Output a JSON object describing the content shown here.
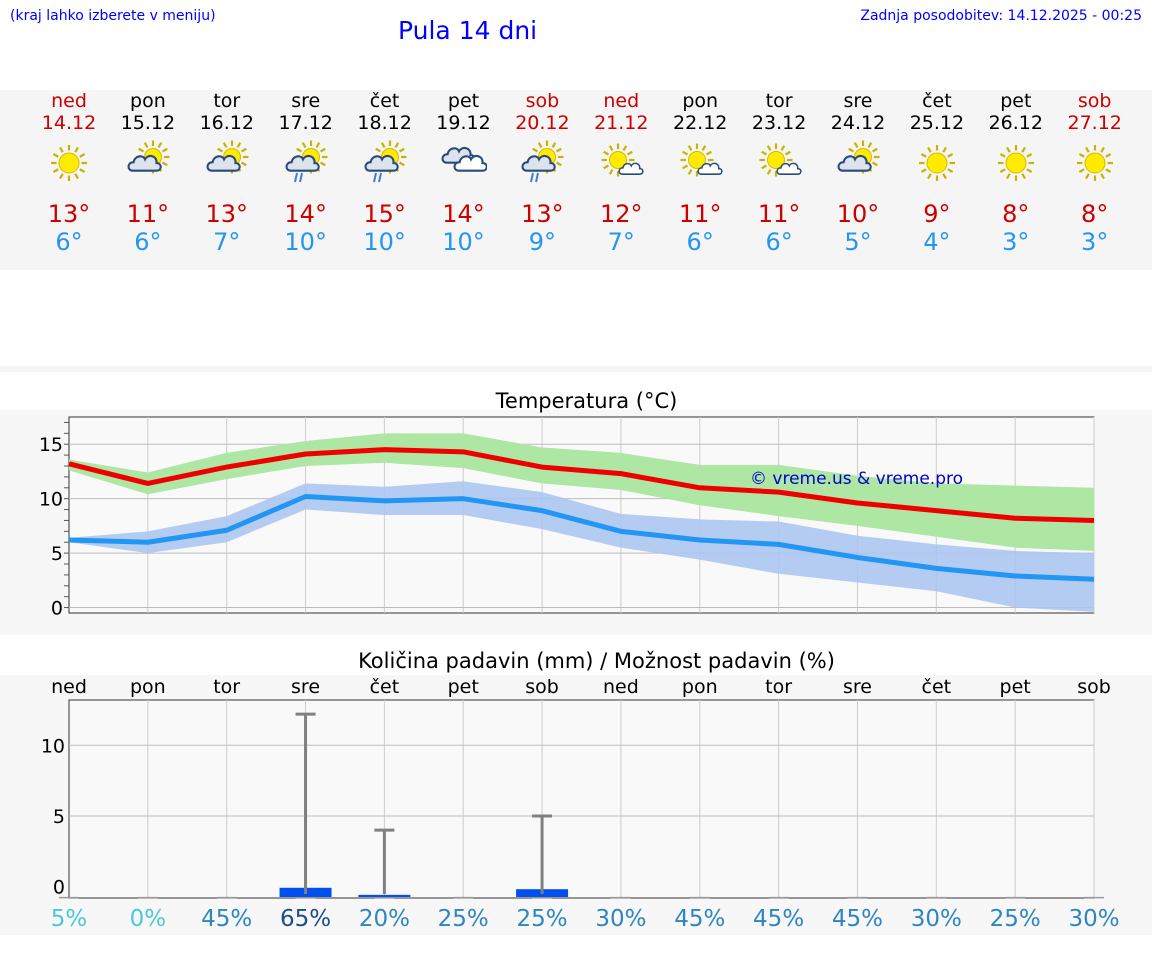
{
  "header": {
    "left_note": "(kraj lahko izberete v meniju)",
    "title": "Pula 14 dni",
    "updated": "Zadnja posodobitev: 14.12.2025 - 00:25"
  },
  "days": [
    {
      "name": "ned",
      "date": "14.12",
      "max": "13°",
      "min": "6°",
      "weekend": true,
      "icon": "sun"
    },
    {
      "name": "pon",
      "date": "15.12",
      "max": "11°",
      "min": "6°",
      "weekend": false,
      "icon": "sun-cloud"
    },
    {
      "name": "tor",
      "date": "16.12",
      "max": "13°",
      "min": "7°",
      "weekend": false,
      "icon": "sun-cloud"
    },
    {
      "name": "sre",
      "date": "17.12",
      "max": "14°",
      "min": "10°",
      "weekend": false,
      "icon": "sun-cloud-rain"
    },
    {
      "name": "čet",
      "date": "18.12",
      "max": "15°",
      "min": "10°",
      "weekend": false,
      "icon": "sun-cloud-rain"
    },
    {
      "name": "pet",
      "date": "19.12",
      "max": "14°",
      "min": "10°",
      "weekend": false,
      "icon": "cloud"
    },
    {
      "name": "sob",
      "date": "20.12",
      "max": "13°",
      "min": "9°",
      "weekend": true,
      "icon": "sun-cloud-rain"
    },
    {
      "name": "ned",
      "date": "21.12",
      "max": "12°",
      "min": "7°",
      "weekend": true,
      "icon": "sun-small-cloud"
    },
    {
      "name": "pon",
      "date": "22.12",
      "max": "11°",
      "min": "6°",
      "weekend": false,
      "icon": "sun-small-cloud"
    },
    {
      "name": "tor",
      "date": "23.12",
      "max": "11°",
      "min": "6°",
      "weekend": false,
      "icon": "sun-small-cloud"
    },
    {
      "name": "sre",
      "date": "24.12",
      "max": "10°",
      "min": "5°",
      "weekend": false,
      "icon": "sun-cloud"
    },
    {
      "name": "čet",
      "date": "25.12",
      "max": "9°",
      "min": "4°",
      "weekend": false,
      "icon": "sun"
    },
    {
      "name": "pet",
      "date": "26.12",
      "max": "8°",
      "min": "3°",
      "weekend": false,
      "icon": "sun"
    },
    {
      "name": "sob",
      "date": "27.12",
      "max": "8°",
      "min": "3°",
      "weekend": true,
      "icon": "sun"
    }
  ],
  "colors": {
    "max_line": "#ee0000",
    "max_band": "#aee6a4",
    "min_line": "#2196f3",
    "min_band": "#a9c4f1",
    "bar": "#0050f0",
    "whisker": "#808080",
    "watermark": "#0000cc"
  },
  "chart_data": [
    {
      "type": "line",
      "title": "Temperatura (°C)",
      "watermark": "© vreme.us & vreme.pro",
      "ylim": [
        -0.5,
        17.5
      ],
      "yticks": [
        0,
        5,
        10,
        15
      ],
      "ytick_labels": [
        "0",
        "5",
        "10",
        "15"
      ],
      "x": [
        0,
        1,
        2,
        3,
        4,
        5,
        6,
        7,
        8,
        9,
        10,
        11,
        12,
        13
      ],
      "series": [
        {
          "name": "max",
          "values": [
            13.2,
            11.4,
            12.9,
            14.1,
            14.5,
            14.3,
            12.9,
            12.3,
            11.0,
            10.6,
            9.6,
            8.9,
            8.2,
            8.0
          ],
          "band_low": [
            12.6,
            10.4,
            11.8,
            13.0,
            13.3,
            12.8,
            11.4,
            10.8,
            9.4,
            8.4,
            7.5,
            6.5,
            5.5,
            5.2
          ],
          "band_high": [
            13.6,
            12.4,
            14.2,
            15.3,
            16.0,
            16.0,
            14.7,
            14.2,
            13.1,
            13.1,
            12.1,
            11.4,
            11.2,
            11.0
          ]
        },
        {
          "name": "min",
          "values": [
            6.2,
            6.0,
            7.1,
            10.2,
            9.8,
            10.0,
            8.9,
            7.0,
            6.2,
            5.8,
            4.6,
            3.6,
            2.9,
            2.6
          ],
          "band_low": [
            6.0,
            5.0,
            6.0,
            9.0,
            8.5,
            8.5,
            7.2,
            5.5,
            4.4,
            3.1,
            2.3,
            1.5,
            0.0,
            -0.4
          ],
          "band_high": [
            6.4,
            7.0,
            8.4,
            11.4,
            11.1,
            11.6,
            10.6,
            8.6,
            8.1,
            7.9,
            6.6,
            5.8,
            5.2,
            5.0
          ]
        }
      ]
    },
    {
      "type": "bar",
      "title": "Količina padavin (mm) / Možnost padavin (%)",
      "ylim": [
        -0.8,
        13.2
      ],
      "yticks": [
        0,
        5,
        10
      ],
      "ytick_labels": [
        "0",
        "5",
        "10"
      ],
      "categories": [
        "ned",
        "pon",
        "tor",
        "sre",
        "čet",
        "pet",
        "sob",
        "ned",
        "pon",
        "tor",
        "sre",
        "čet",
        "pet",
        "sob"
      ],
      "values": [
        0,
        0,
        0,
        0.7,
        0.2,
        0,
        0.6,
        0,
        0,
        0,
        0,
        0,
        0,
        0
      ],
      "whisker_high": [
        0,
        0,
        0,
        12.2,
        4.0,
        0,
        5.0,
        0,
        0,
        0,
        0,
        0,
        0,
        0
      ],
      "probability": [
        "5%",
        "0%",
        "45%",
        "65%",
        "20%",
        "25%",
        "25%",
        "30%",
        "45%",
        "45%",
        "45%",
        "30%",
        "25%",
        "30%"
      ],
      "probability_colors": [
        "#4dc8d9",
        "#4dc8d9",
        "#2e86c1",
        "#1a4f8a",
        "#2e86c1",
        "#2e86c1",
        "#2e86c1",
        "#2e86c1",
        "#2e86c1",
        "#2e86c1",
        "#2e86c1",
        "#2e86c1",
        "#2e86c1",
        "#2e86c1"
      ]
    }
  ]
}
